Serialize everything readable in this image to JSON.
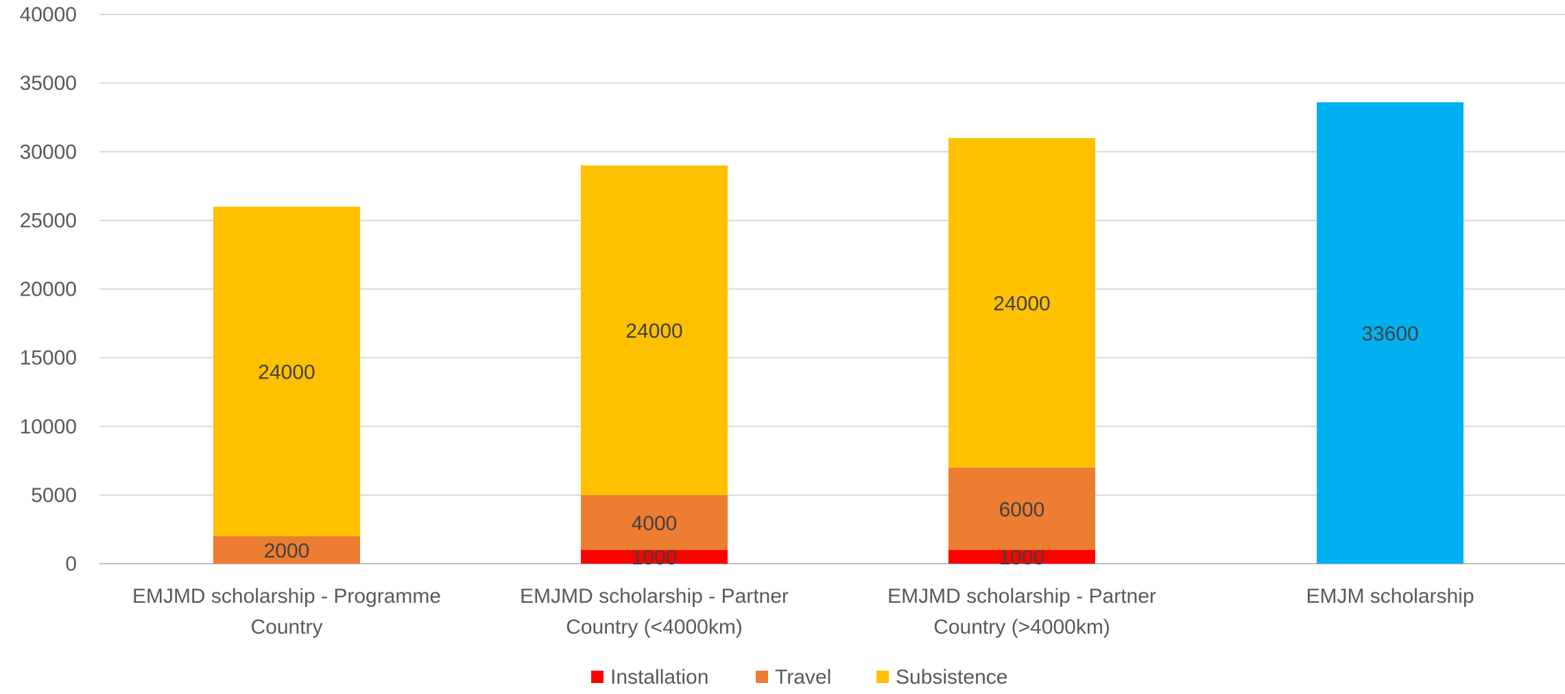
{
  "chart_data": {
    "type": "bar",
    "stacked": true,
    "categories": [
      [
        "EMJMD scholarship - Programme",
        "Country"
      ],
      [
        "EMJMD scholarship - Partner",
        "Country (<4000km)"
      ],
      [
        "EMJMD scholarship - Partner",
        "Country (>4000km)"
      ],
      [
        "EMJM scholarship"
      ]
    ],
    "series": [
      {
        "name": "Installation",
        "color": "#FF0000",
        "values": [
          null,
          1000,
          1000,
          null
        ]
      },
      {
        "name": "Travel",
        "color": "#ED7D31",
        "values": [
          2000,
          4000,
          6000,
          null
        ]
      },
      {
        "name": "Subsistence",
        "color": "#FFC000",
        "values": [
          24000,
          24000,
          24000,
          null
        ]
      },
      {
        "name": "",
        "color": "#00B0F0",
        "values": [
          null,
          null,
          null,
          33600
        ]
      }
    ],
    "ylim": [
      0,
      40000
    ],
    "yticks": [
      0,
      5000,
      10000,
      15000,
      20000,
      25000,
      30000,
      35000,
      40000
    ],
    "grid": true,
    "legend": {
      "position": "bottom",
      "entries": [
        "Installation",
        "Travel",
        "Subsistence"
      ]
    },
    "title": "",
    "xlabel": "",
    "ylabel": ""
  }
}
